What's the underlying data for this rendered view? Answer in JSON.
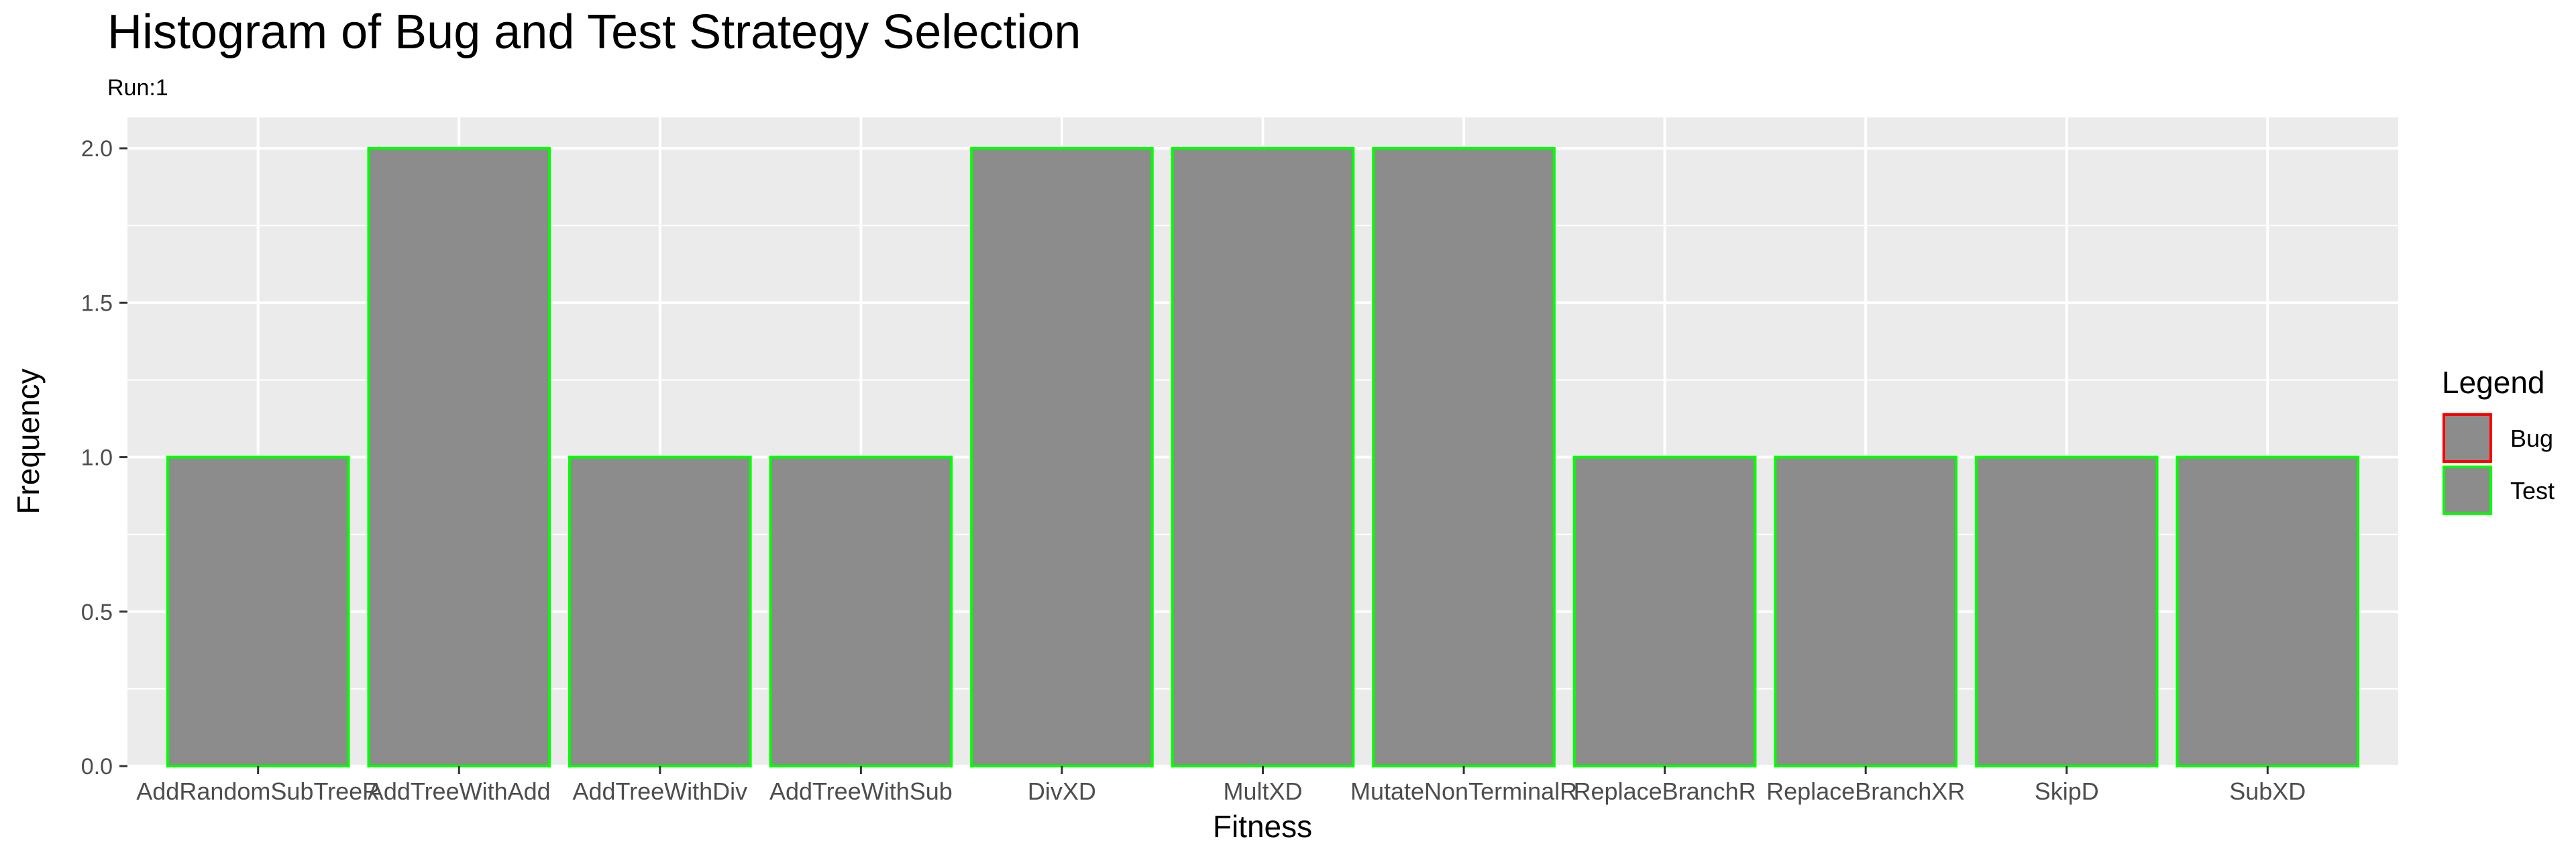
{
  "chart_data": {
    "type": "bar",
    "title": "Histogram of Bug and Test Strategy Selection",
    "subtitle": "Run:1",
    "xlabel": "Fitness",
    "ylabel": "Frequency",
    "categories": [
      "AddRandomSubTreeR",
      "AddTreeWithAdd",
      "AddTreeWithDiv",
      "AddTreeWithSub",
      "DivXD",
      "MultXD",
      "MutateNonTerminalR",
      "ReplaceBranchR",
      "ReplaceBranchXR",
      "SkipD",
      "SubXD"
    ],
    "series": [
      {
        "name": "Test",
        "values": [
          1,
          2,
          1,
          1,
          2,
          2,
          2,
          1,
          1,
          1,
          1
        ]
      }
    ],
    "ylim": [
      0,
      2.1
    ],
    "yticks": [
      "0.0",
      "0.5",
      "1.0",
      "1.5",
      "2.0"
    ],
    "grid": true,
    "legend": {
      "title": "Legend",
      "placement": "right",
      "entries": [
        {
          "label": "Bug",
          "color": "#ff0000"
        },
        {
          "label": "Test",
          "color": "#00ff00"
        }
      ]
    },
    "colors": {
      "bar_fill": "#8c8c8c",
      "panel_background": "#ebebeb",
      "grid": "#ffffff"
    }
  }
}
